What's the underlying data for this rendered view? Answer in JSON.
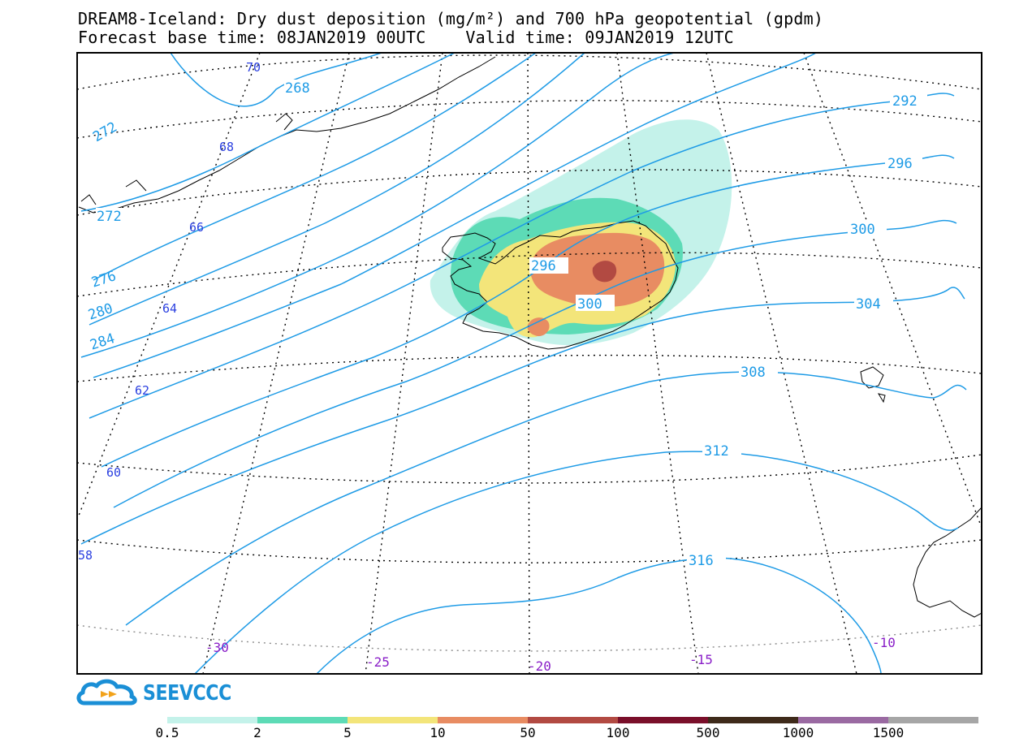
{
  "header": {
    "title_line1": "DREAM8-Iceland: Dry dust deposition (mg/m²) and 700 hPa geopotential (gpdm)",
    "title_line2": "Forecast base time: 08JAN2019 00UTC    Valid time: 09JAN2019 12UTC"
  },
  "map": {
    "geopotential_contours": [
      "268",
      "272",
      "272",
      "276",
      "280",
      "284",
      "292",
      "296",
      "296",
      "300",
      "300",
      "304",
      "308",
      "312",
      "316"
    ],
    "latitude_labels": [
      "70",
      "68",
      "66",
      "64",
      "62",
      "60",
      "58"
    ],
    "longitude_labels": [
      "-30",
      "-25",
      "-20",
      "-15",
      "-10"
    ],
    "colors": {
      "contour": "#1e9be6",
      "latitude_label": "#2a3fe0",
      "longitude_label": "#8a1fc8",
      "coastline": "#000000"
    }
  },
  "logo": {
    "text": "SEEVCCC",
    "icon": "cloud-arrow-icon",
    "color": "#1a8fd6"
  },
  "legend": {
    "colors": [
      "#c4f2ea",
      "#5ddbb6",
      "#f3e57a",
      "#e88c62",
      "#b24a42",
      "#7a0f2a",
      "#3e2a1a",
      "#9a6aa2",
      "#a6a6a6"
    ],
    "labels": [
      "0.5",
      "2",
      "5",
      "10",
      "50",
      "100",
      "500",
      "1000",
      "1500"
    ]
  }
}
